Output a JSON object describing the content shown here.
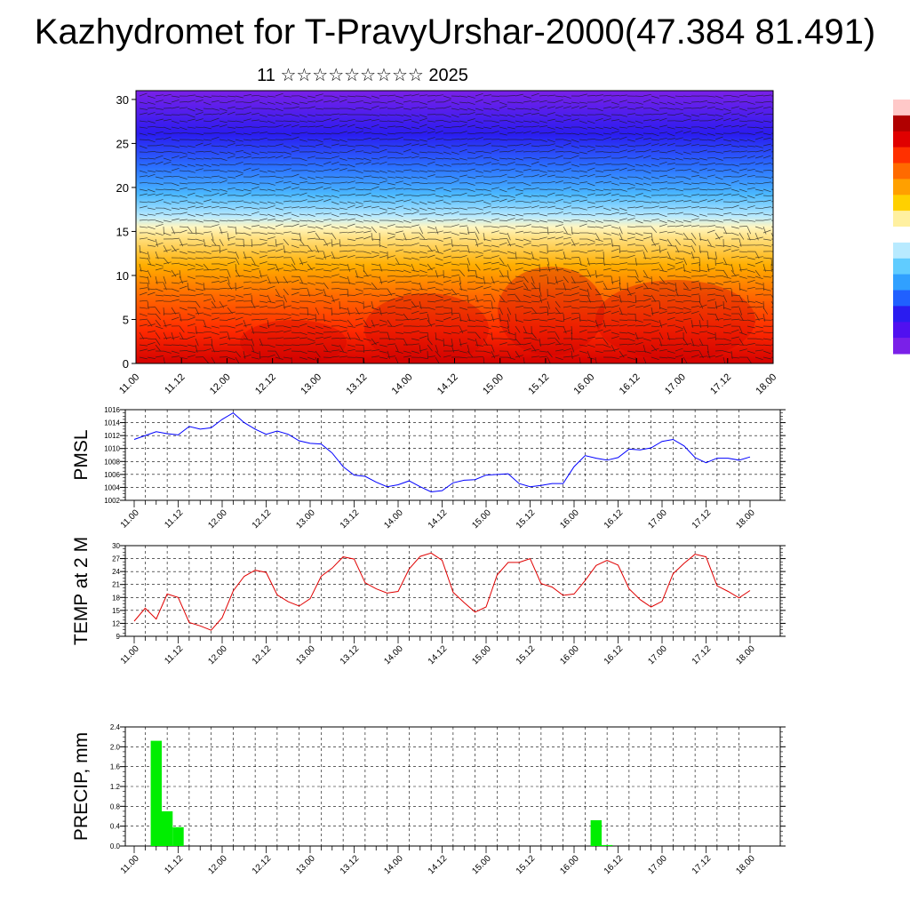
{
  "title": "Kazhydromet for T-PravyUrshar-2000(47.384 81.491)",
  "subtitle": "11 ☆☆☆☆☆☆☆☆☆ 2025",
  "x_tick_labels": [
    "11.00",
    "11.12",
    "12.00",
    "12.12",
    "13.00",
    "13.12",
    "14.00",
    "14.12",
    "15.00",
    "15.12",
    "16.00",
    "16.12",
    "17.00",
    "17.12",
    "18.00"
  ],
  "chart_data": [
    {
      "type": "heatmap",
      "name": "cross-section",
      "ylim": [
        0,
        31
      ],
      "y_ticks": [
        0,
        5,
        10,
        15,
        20,
        25,
        30
      ],
      "x_ticks": [
        "11.00",
        "11.12",
        "12.00",
        "12.12",
        "13.00",
        "13.12",
        "14.00",
        "14.12",
        "15.00",
        "15.12",
        "16.00",
        "16.12",
        "17.00",
        "17.12",
        "18.00"
      ],
      "colorbar": [
        "#8a2be2",
        "#5a00ff",
        "#2a40ff",
        "#3aa0ff",
        "#b0e8ff",
        "#fff0a0",
        "#ffc000",
        "#ff7000",
        "#ff2000",
        "#c00000"
      ],
      "grid": false
    },
    {
      "type": "line",
      "ylabel": "PMSL",
      "ylim": [
        1002,
        1016
      ],
      "y_ticks": [
        1002,
        1004,
        1006,
        1008,
        1010,
        1012,
        1014,
        1016
      ],
      "color": "#0000ff",
      "grid": true,
      "values": [
        1011.4,
        1012.0,
        1012.6,
        1012.3,
        1012.1,
        1013.4,
        1013.0,
        1013.2,
        1014.5,
        1015.5,
        1014.0,
        1013.0,
        1012.2,
        1012.7,
        1012.2,
        1011.2,
        1010.8,
        1010.7,
        1009.3,
        1007.2,
        1005.9,
        1005.7,
        1004.8,
        1004.1,
        1004.4,
        1005.0,
        1004.1,
        1003.3,
        1003.5,
        1004.7,
        1005.1,
        1005.2,
        1005.9,
        1006.0,
        1006.1,
        1004.6,
        1004.1,
        1004.3,
        1004.6,
        1004.6,
        1007.2,
        1008.9,
        1008.5,
        1008.2,
        1008.6,
        1009.9,
        1009.8,
        1010.1,
        1011.1,
        1011.4,
        1010.4,
        1008.6,
        1007.8,
        1008.5,
        1008.5,
        1008.2,
        1008.7
      ]
    },
    {
      "type": "line",
      "ylabel": "TEMP at 2 M",
      "ylim": [
        9,
        30
      ],
      "y_ticks": [
        9,
        12,
        15,
        18,
        21,
        24,
        27,
        30
      ],
      "color": "#e00000",
      "grid": true,
      "values": [
        12.5,
        15.5,
        13.0,
        18.8,
        18.0,
        12.2,
        11.4,
        10.4,
        13.3,
        19.5,
        22.9,
        24.3,
        23.8,
        18.6,
        17.0,
        16.0,
        17.7,
        22.9,
        24.8,
        27.4,
        26.9,
        21.4,
        20.0,
        19.0,
        19.4,
        24.6,
        27.5,
        28.3,
        26.6,
        19.2,
        16.8,
        14.6,
        15.8,
        23.2,
        26.1,
        26.1,
        27.0,
        21.2,
        20.4,
        18.5,
        18.8,
        21.9,
        25.4,
        26.6,
        25.5,
        20.0,
        17.5,
        15.8,
        17.1,
        23.5,
        25.9,
        28.0,
        27.4,
        20.7,
        19.4,
        17.9,
        19.6
      ]
    },
    {
      "type": "bar",
      "ylabel": "PRECIP, mm",
      "ylim": [
        0,
        2.4
      ],
      "y_ticks": [
        "0.0",
        "0.4",
        "0.8",
        "1.2",
        "1.6",
        "2.0",
        "2.4"
      ],
      "color": "#00ee00",
      "grid": true,
      "values": [
        0,
        0,
        2.12,
        0.7,
        0.38,
        0,
        0,
        0,
        0,
        0,
        0,
        0,
        0,
        0,
        0,
        0,
        0,
        0,
        0,
        0,
        0,
        0,
        0,
        0,
        0,
        0,
        0,
        0,
        0,
        0,
        0,
        0,
        0,
        0,
        0,
        0,
        0,
        0,
        0,
        0,
        0,
        0,
        0.52,
        0.02,
        0,
        0,
        0,
        0,
        0,
        0,
        0,
        0,
        0,
        0,
        0,
        0,
        0
      ]
    }
  ]
}
